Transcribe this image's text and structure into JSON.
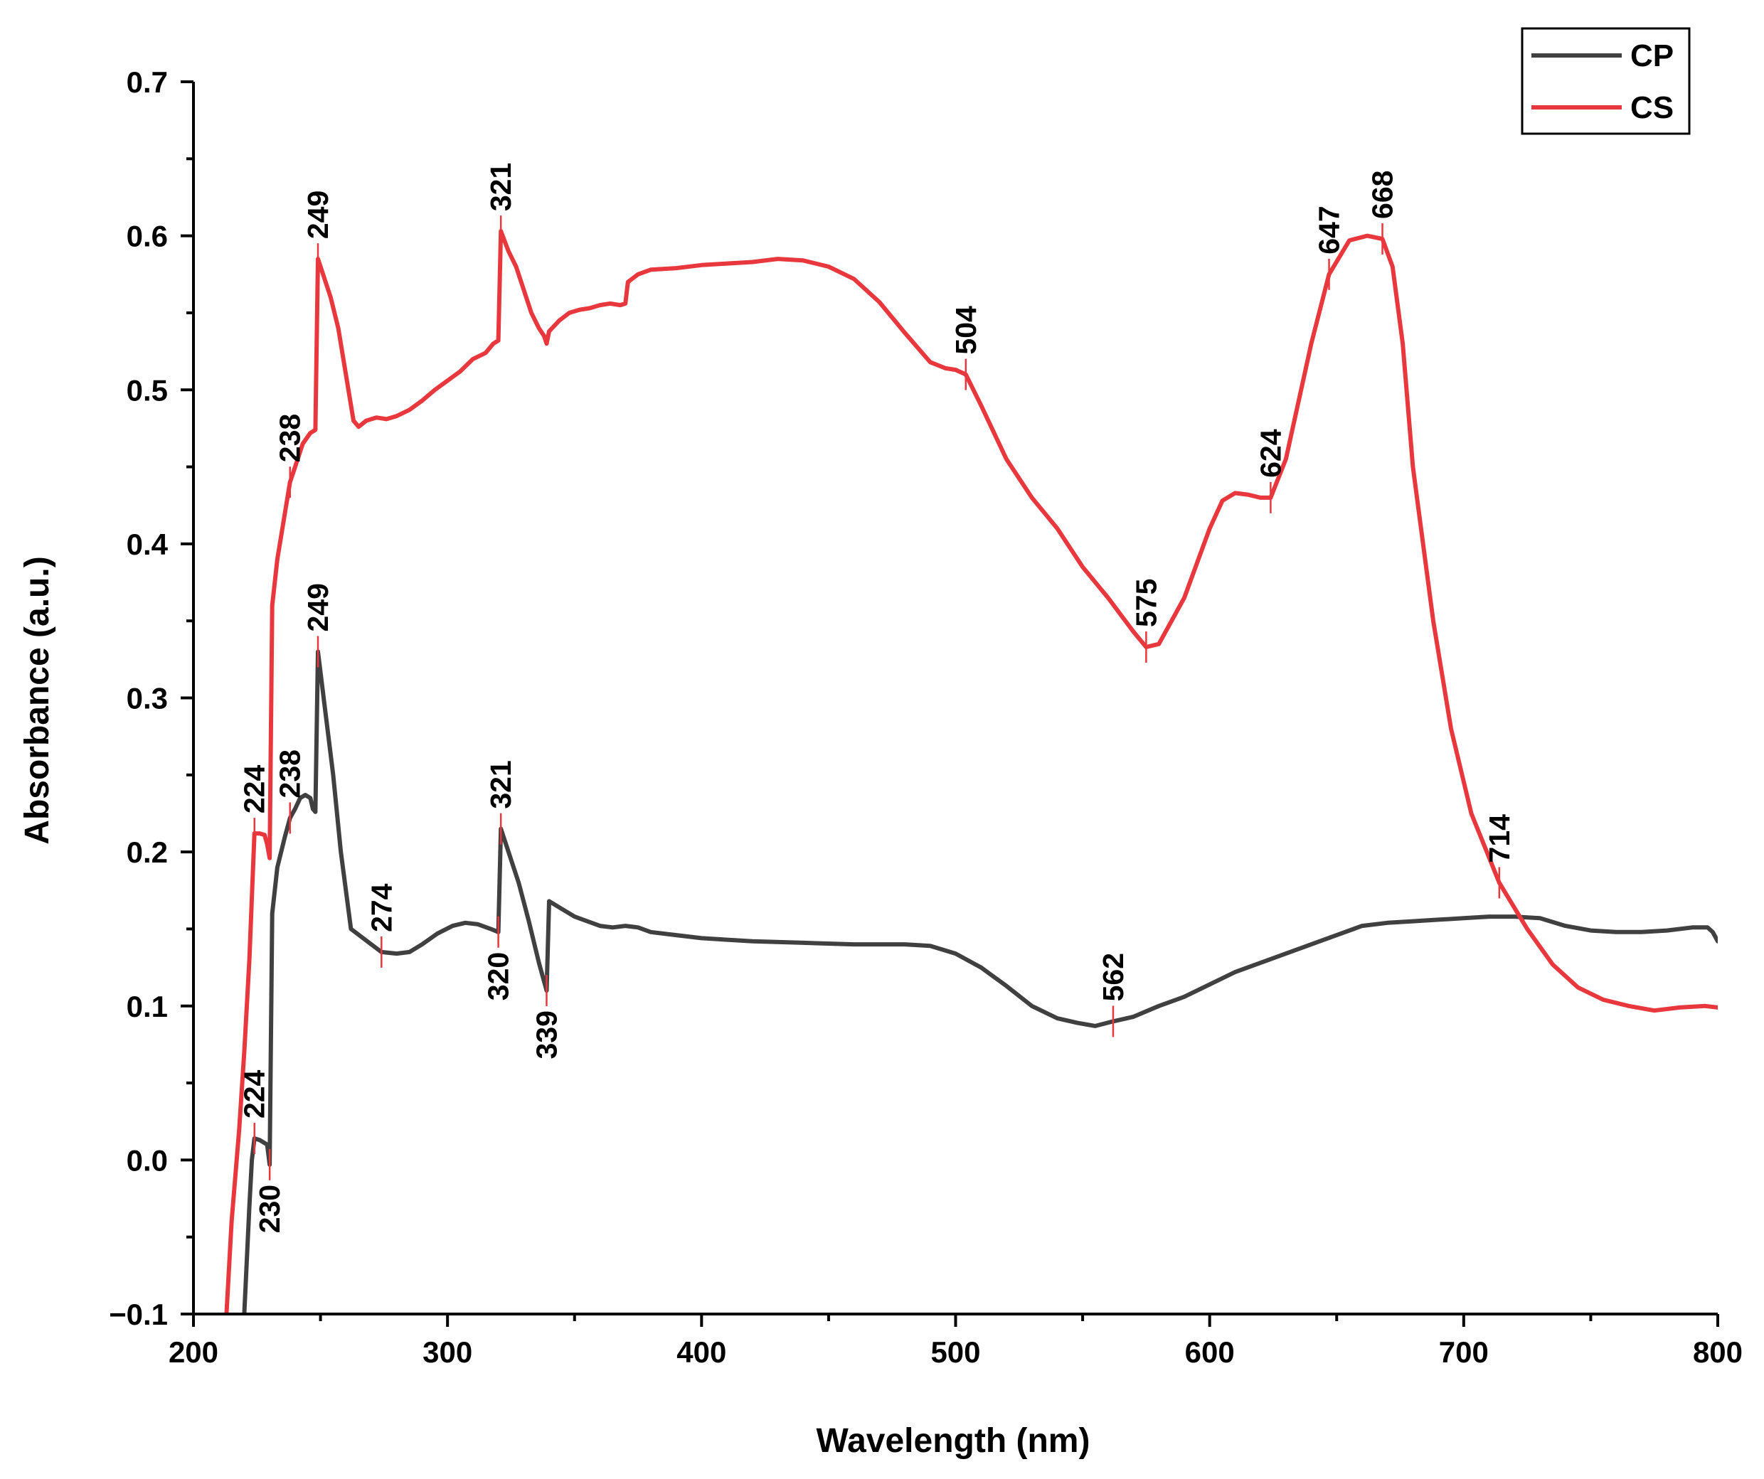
{
  "chart_data": {
    "type": "line",
    "title": "",
    "xlabel": "Wavelength (nm)",
    "ylabel": "Absorbance (a.u.)",
    "xlim": [
      200,
      800
    ],
    "ylim": [
      -0.1,
      0.7
    ],
    "xticks": [
      200,
      300,
      400,
      500,
      600,
      700,
      800
    ],
    "xtick_labels": [
      "200",
      "300",
      "400",
      "500",
      "600",
      "700",
      "800"
    ],
    "yticks": [
      -0.1,
      0.0,
      0.1,
      0.2,
      0.3,
      0.4,
      0.5,
      0.6,
      0.7
    ],
    "ytick_labels": [
      "−0.1",
      "0.0",
      "0.1",
      "0.2",
      "0.3",
      "0.4",
      "0.5",
      "0.6",
      "0.7"
    ],
    "grid": false,
    "legend": {
      "position": "top-right",
      "entries": [
        "CP",
        "CS"
      ]
    },
    "series": [
      {
        "name": "CP",
        "color": "#404040",
        "points": [
          [
            220,
            -0.1
          ],
          [
            222,
            -0.03
          ],
          [
            223,
            0.0
          ],
          [
            224,
            0.014
          ],
          [
            226,
            0.013
          ],
          [
            229,
            0.01
          ],
          [
            230,
            -0.003
          ],
          [
            231,
            0.16
          ],
          [
            233,
            0.19
          ],
          [
            236,
            0.21
          ],
          [
            238,
            0.222
          ],
          [
            240,
            0.228
          ],
          [
            242,
            0.235
          ],
          [
            244,
            0.237
          ],
          [
            246,
            0.235
          ],
          [
            247,
            0.228
          ],
          [
            248,
            0.226
          ],
          [
            249,
            0.33
          ],
          [
            252,
            0.29
          ],
          [
            255,
            0.25
          ],
          [
            258,
            0.2
          ],
          [
            262,
            0.15
          ],
          [
            266,
            0.145
          ],
          [
            270,
            0.14
          ],
          [
            274,
            0.135
          ],
          [
            280,
            0.134
          ],
          [
            285,
            0.135
          ],
          [
            290,
            0.14
          ],
          [
            296,
            0.147
          ],
          [
            302,
            0.152
          ],
          [
            307,
            0.154
          ],
          [
            312,
            0.153
          ],
          [
            317,
            0.15
          ],
          [
            320,
            0.148
          ],
          [
            321,
            0.215
          ],
          [
            324,
            0.2
          ],
          [
            328,
            0.18
          ],
          [
            332,
            0.155
          ],
          [
            336,
            0.128
          ],
          [
            339,
            0.11
          ],
          [
            340,
            0.168
          ],
          [
            345,
            0.163
          ],
          [
            350,
            0.158
          ],
          [
            355,
            0.155
          ],
          [
            360,
            0.152
          ],
          [
            365,
            0.151
          ],
          [
            370,
            0.152
          ],
          [
            375,
            0.151
          ],
          [
            380,
            0.148
          ],
          [
            390,
            0.146
          ],
          [
            400,
            0.144
          ],
          [
            420,
            0.142
          ],
          [
            440,
            0.141
          ],
          [
            460,
            0.14
          ],
          [
            480,
            0.14
          ],
          [
            490,
            0.139
          ],
          [
            500,
            0.134
          ],
          [
            510,
            0.125
          ],
          [
            520,
            0.113
          ],
          [
            530,
            0.1
          ],
          [
            540,
            0.092
          ],
          [
            548,
            0.089
          ],
          [
            555,
            0.087
          ],
          [
            562,
            0.09
          ],
          [
            570,
            0.093
          ],
          [
            580,
            0.1
          ],
          [
            590,
            0.106
          ],
          [
            600,
            0.114
          ],
          [
            610,
            0.122
          ],
          [
            620,
            0.128
          ],
          [
            630,
            0.134
          ],
          [
            640,
            0.14
          ],
          [
            650,
            0.146
          ],
          [
            660,
            0.152
          ],
          [
            670,
            0.154
          ],
          [
            680,
            0.155
          ],
          [
            690,
            0.156
          ],
          [
            700,
            0.157
          ],
          [
            710,
            0.158
          ],
          [
            720,
            0.158
          ],
          [
            730,
            0.157
          ],
          [
            740,
            0.152
          ],
          [
            750,
            0.149
          ],
          [
            760,
            0.148
          ],
          [
            770,
            0.148
          ],
          [
            780,
            0.149
          ],
          [
            790,
            0.151
          ],
          [
            796,
            0.151
          ],
          [
            798,
            0.148
          ],
          [
            800,
            0.142
          ]
        ]
      },
      {
        "name": "CS",
        "color": "#e8383d",
        "points": [
          [
            213,
            -0.1
          ],
          [
            215,
            -0.04
          ],
          [
            218,
            0.02
          ],
          [
            220,
            0.07
          ],
          [
            222,
            0.13
          ],
          [
            224,
            0.212
          ],
          [
            226,
            0.212
          ],
          [
            228,
            0.211
          ],
          [
            229,
            0.205
          ],
          [
            230,
            0.196
          ],
          [
            231,
            0.36
          ],
          [
            233,
            0.39
          ],
          [
            235,
            0.41
          ],
          [
            238,
            0.44
          ],
          [
            240,
            0.45
          ],
          [
            243,
            0.465
          ],
          [
            246,
            0.472
          ],
          [
            248,
            0.474
          ],
          [
            249,
            0.585
          ],
          [
            251,
            0.575
          ],
          [
            254,
            0.56
          ],
          [
            257,
            0.54
          ],
          [
            260,
            0.51
          ],
          [
            263,
            0.48
          ],
          [
            265,
            0.476
          ],
          [
            268,
            0.48
          ],
          [
            272,
            0.482
          ],
          [
            276,
            0.481
          ],
          [
            280,
            0.483
          ],
          [
            285,
            0.487
          ],
          [
            290,
            0.493
          ],
          [
            295,
            0.5
          ],
          [
            300,
            0.506
          ],
          [
            305,
            0.512
          ],
          [
            310,
            0.52
          ],
          [
            315,
            0.524
          ],
          [
            318,
            0.53
          ],
          [
            320,
            0.532
          ],
          [
            321,
            0.603
          ],
          [
            324,
            0.59
          ],
          [
            327,
            0.58
          ],
          [
            330,
            0.565
          ],
          [
            333,
            0.55
          ],
          [
            336,
            0.54
          ],
          [
            338,
            0.535
          ],
          [
            339,
            0.53
          ],
          [
            340,
            0.538
          ],
          [
            344,
            0.545
          ],
          [
            348,
            0.55
          ],
          [
            352,
            0.552
          ],
          [
            356,
            0.553
          ],
          [
            360,
            0.555
          ],
          [
            364,
            0.556
          ],
          [
            368,
            0.555
          ],
          [
            370,
            0.556
          ],
          [
            371,
            0.57
          ],
          [
            375,
            0.575
          ],
          [
            380,
            0.578
          ],
          [
            390,
            0.579
          ],
          [
            400,
            0.581
          ],
          [
            410,
            0.582
          ],
          [
            420,
            0.583
          ],
          [
            430,
            0.585
          ],
          [
            440,
            0.584
          ],
          [
            450,
            0.58
          ],
          [
            460,
            0.572
          ],
          [
            470,
            0.557
          ],
          [
            480,
            0.537
          ],
          [
            490,
            0.518
          ],
          [
            496,
            0.514
          ],
          [
            500,
            0.513
          ],
          [
            504,
            0.51
          ],
          [
            510,
            0.49
          ],
          [
            520,
            0.455
          ],
          [
            530,
            0.43
          ],
          [
            540,
            0.41
          ],
          [
            550,
            0.385
          ],
          [
            560,
            0.365
          ],
          [
            570,
            0.343
          ],
          [
            575,
            0.333
          ],
          [
            580,
            0.335
          ],
          [
            590,
            0.365
          ],
          [
            600,
            0.41
          ],
          [
            605,
            0.428
          ],
          [
            610,
            0.433
          ],
          [
            615,
            0.432
          ],
          [
            620,
            0.43
          ],
          [
            624,
            0.43
          ],
          [
            630,
            0.455
          ],
          [
            640,
            0.53
          ],
          [
            647,
            0.575
          ],
          [
            655,
            0.597
          ],
          [
            662,
            0.6
          ],
          [
            668,
            0.598
          ],
          [
            672,
            0.58
          ],
          [
            676,
            0.53
          ],
          [
            680,
            0.45
          ],
          [
            688,
            0.35
          ],
          [
            695,
            0.28
          ],
          [
            703,
            0.225
          ],
          [
            714,
            0.18
          ],
          [
            725,
            0.15
          ],
          [
            735,
            0.127
          ],
          [
            745,
            0.112
          ],
          [
            755,
            0.104
          ],
          [
            765,
            0.1
          ],
          [
            775,
            0.097
          ],
          [
            785,
            0.099
          ],
          [
            795,
            0.1
          ],
          [
            800,
            0.099
          ]
        ]
      }
    ],
    "annotations": [
      {
        "series": "CP",
        "x": 224,
        "y": 0.014,
        "label": "224",
        "pos": "above"
      },
      {
        "series": "CP",
        "x": 230,
        "y": -0.003,
        "label": "230",
        "pos": "below"
      },
      {
        "series": "CP",
        "x": 238,
        "y": 0.222,
        "label": "238",
        "pos": "above"
      },
      {
        "series": "CP",
        "x": 249,
        "y": 0.33,
        "label": "249",
        "pos": "above"
      },
      {
        "series": "CP",
        "x": 274,
        "y": 0.135,
        "label": "274",
        "pos": "above"
      },
      {
        "series": "CP",
        "x": 320,
        "y": 0.148,
        "label": "320",
        "pos": "below"
      },
      {
        "series": "CP",
        "x": 321,
        "y": 0.215,
        "label": "321",
        "pos": "above"
      },
      {
        "series": "CP",
        "x": 339,
        "y": 0.11,
        "label": "339",
        "pos": "below"
      },
      {
        "series": "CP",
        "x": 562,
        "y": 0.09,
        "label": "562",
        "pos": "above"
      },
      {
        "series": "CS",
        "x": 224,
        "y": 0.212,
        "label": "224",
        "pos": "above"
      },
      {
        "series": "CS",
        "x": 238,
        "y": 0.44,
        "label": "238",
        "pos": "above"
      },
      {
        "series": "CS",
        "x": 249,
        "y": 0.585,
        "label": "249",
        "pos": "above"
      },
      {
        "series": "CS",
        "x": 321,
        "y": 0.603,
        "label": "321",
        "pos": "above"
      },
      {
        "series": "CS",
        "x": 504,
        "y": 0.51,
        "label": "504",
        "pos": "above"
      },
      {
        "series": "CS",
        "x": 575,
        "y": 0.333,
        "label": "575",
        "pos": "above"
      },
      {
        "series": "CS",
        "x": 624,
        "y": 0.43,
        "label": "624",
        "pos": "above"
      },
      {
        "series": "CS",
        "x": 647,
        "y": 0.575,
        "label": "647",
        "pos": "above"
      },
      {
        "series": "CS",
        "x": 668,
        "y": 0.598,
        "label": "668",
        "pos": "above"
      },
      {
        "series": "CS",
        "x": 714,
        "y": 0.18,
        "label": "714",
        "pos": "above"
      }
    ]
  }
}
